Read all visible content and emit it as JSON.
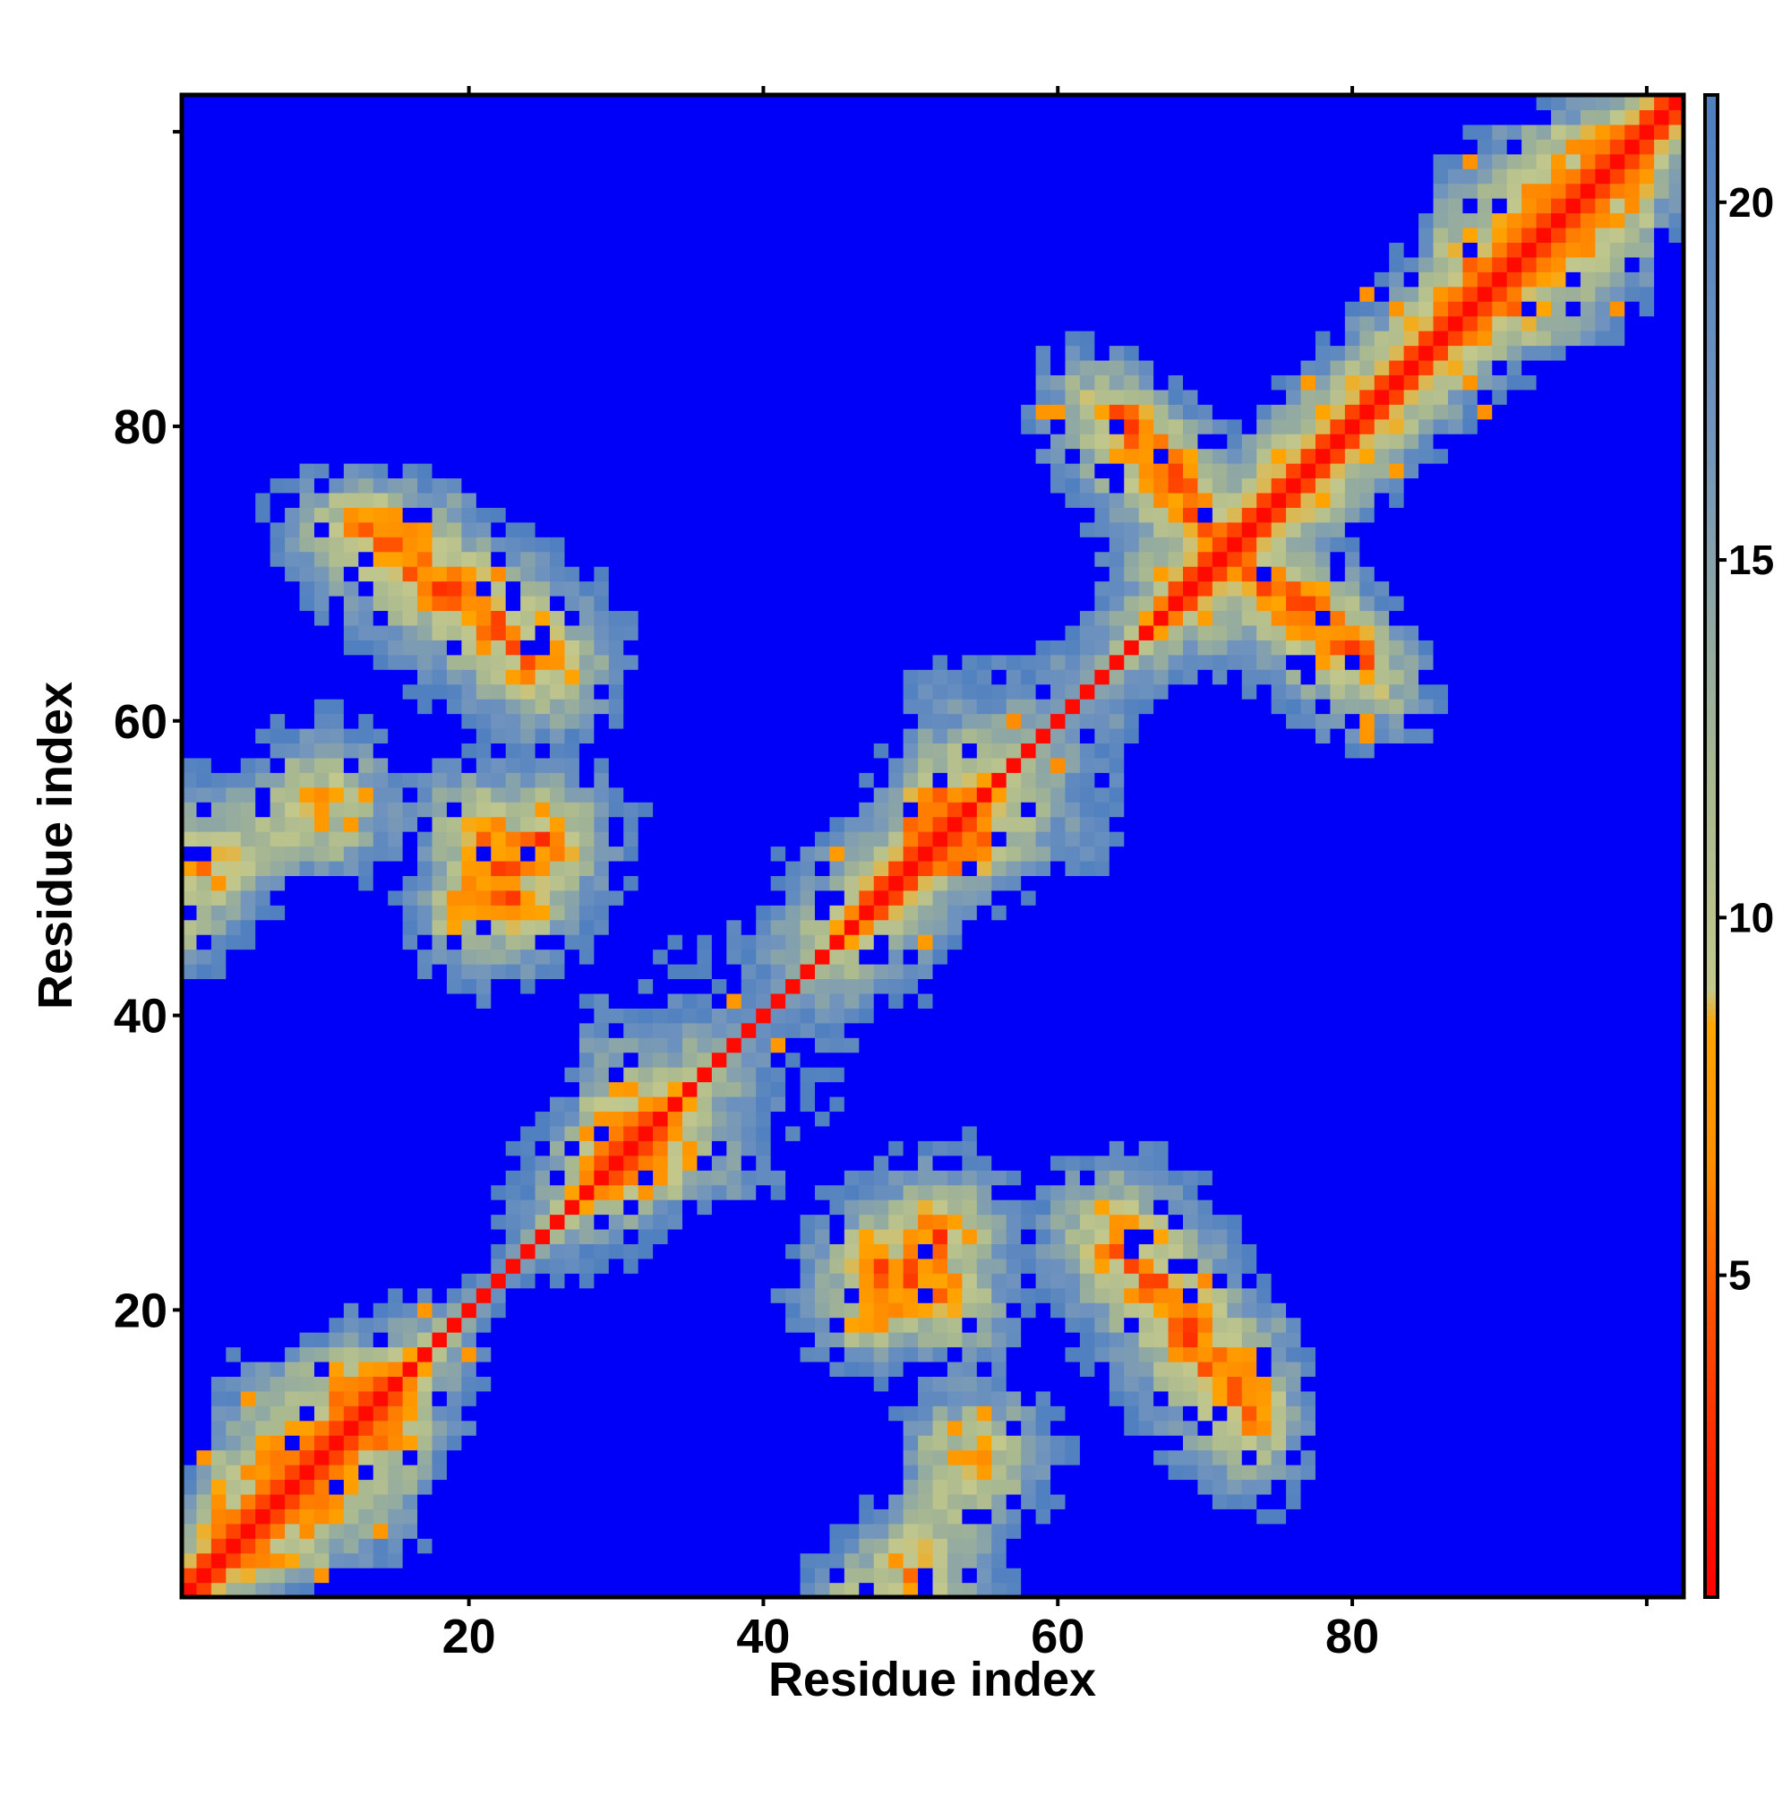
{
  "chart_data": {
    "type": "heatmap",
    "title": "",
    "xlabel": "Residue index",
    "ylabel": "Residue index",
    "xlim": [
      1,
      102
    ],
    "ylim": [
      1,
      102
    ],
    "x_ticks": [
      20,
      40,
      60,
      80
    ],
    "y_ticks": [
      20,
      40,
      60,
      80
    ],
    "colorbar": {
      "range": [
        0.5,
        21.5
      ],
      "ticks": [
        5,
        10,
        15,
        20
      ],
      "stops": [
        {
          "value": 0.5,
          "color": "#ff0000"
        },
        {
          "value": 4.5,
          "color": "#ff5000"
        },
        {
          "value": 6.5,
          "color": "#ff8c00"
        },
        {
          "value": 8.5,
          "color": "#ffa500"
        },
        {
          "value": 9.0,
          "color": "#c2c78c"
        },
        {
          "value": 12.0,
          "color": "#a8b890"
        },
        {
          "value": 17.0,
          "color": "#6f93be"
        },
        {
          "value": 21.0,
          "color": "#5080c0"
        },
        {
          "value": 21.5,
          "color": "#0000f8"
        }
      ]
    },
    "cap_value": 21.5,
    "colors": {
      "contact_red": "#ff0000",
      "orange": "#ff8c00",
      "sage": "#a8b890",
      "steel_blue": "#6f93be",
      "far_blue": "#0000f8"
    }
  }
}
